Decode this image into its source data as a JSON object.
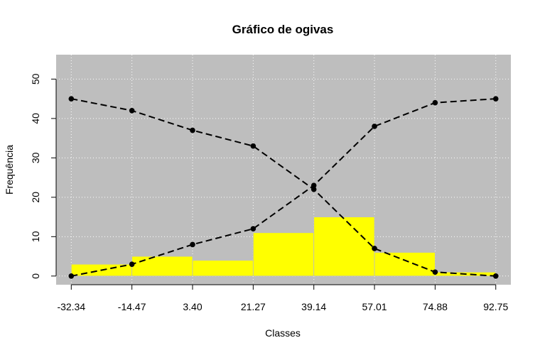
{
  "chart_data": {
    "type": "bar",
    "title": "Gráfico de ogivas",
    "xlabel": "Classes",
    "ylabel": "Frequência",
    "x_ticks": [
      "-32.34",
      "-14.47",
      "3.40",
      "21.27",
      "39.14",
      "57.01",
      "74.88",
      "92.75"
    ],
    "class_breaks": [
      -32.34,
      -14.47,
      3.4,
      21.27,
      39.14,
      57.01,
      74.88,
      92.75
    ],
    "xlim": [
      -36.8,
      97.2
    ],
    "ylim": [
      -2.2,
      56.2
    ],
    "y_ticks": [
      0,
      10,
      20,
      30,
      40,
      50
    ],
    "grid": true,
    "histogram": {
      "name": "",
      "color": "#FFFF00",
      "values": [
        3,
        5,
        4,
        11,
        15,
        6,
        1
      ]
    },
    "series": [
      {
        "name": "",
        "kind": "ogive-ascending",
        "x": [
          -32.34,
          -14.47,
          3.4,
          21.27,
          39.14,
          57.01,
          74.88,
          92.75
        ],
        "values": [
          0,
          3,
          8,
          12,
          23,
          38,
          44,
          45
        ]
      },
      {
        "name": "",
        "kind": "ogive-descending",
        "x": [
          -32.34,
          -14.47,
          3.4,
          21.27,
          39.14,
          57.01,
          74.88,
          92.75
        ],
        "values": [
          45,
          42,
          37,
          33,
          22,
          7,
          1,
          0
        ]
      }
    ],
    "colors": {
      "plot_background": "#BEBEBE",
      "grid": "#FFFFFF",
      "bars": "#FFFF00",
      "lines": "#000000"
    }
  }
}
